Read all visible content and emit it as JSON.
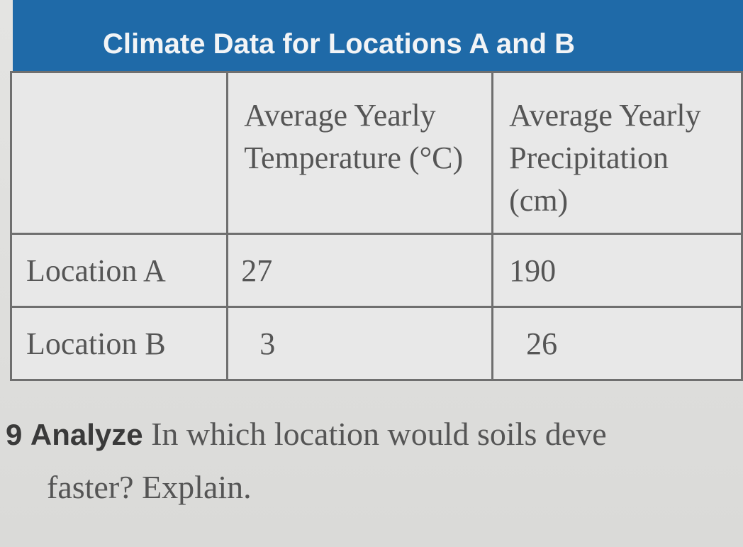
{
  "table": {
    "title": "Climate Data for Locations A and B",
    "columns": [
      "Average Yearly Temperature (°C)",
      "Average Yearly Precipitation (cm)"
    ],
    "rows": [
      [
        "Location A",
        27,
        190
      ],
      [
        "Location B",
        3,
        26
      ]
    ]
  },
  "question": {
    "number": "9",
    "label": "Analyze",
    "lines": [
      "In which location would soils deve",
      "faster? Explain."
    ]
  }
}
